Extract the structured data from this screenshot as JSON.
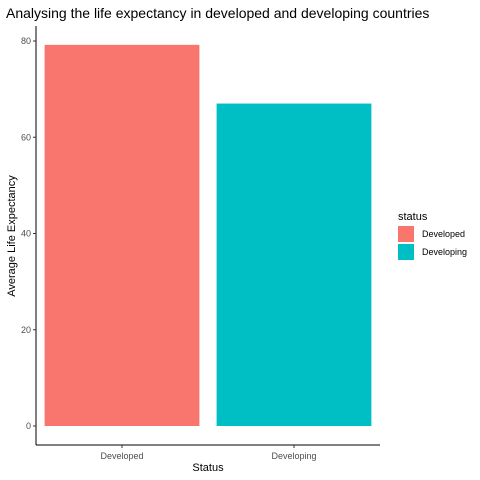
{
  "chart_data": {
    "type": "bar",
    "title": "Analysing the life expectancy in developed and developing countries",
    "xlabel": "Status",
    "ylabel": "Average Life Expectancy",
    "categories": [
      "Developed",
      "Developing"
    ],
    "values": [
      79.2,
      67.0
    ],
    "colors": [
      "#F8766D",
      "#00BFC4"
    ],
    "ylim": [
      0,
      82.5
    ],
    "yticks": [
      0,
      20,
      40,
      60,
      80
    ],
    "grid": false,
    "legend": {
      "title": "status",
      "position": "right",
      "entries": [
        "Developed",
        "Developing"
      ]
    }
  }
}
